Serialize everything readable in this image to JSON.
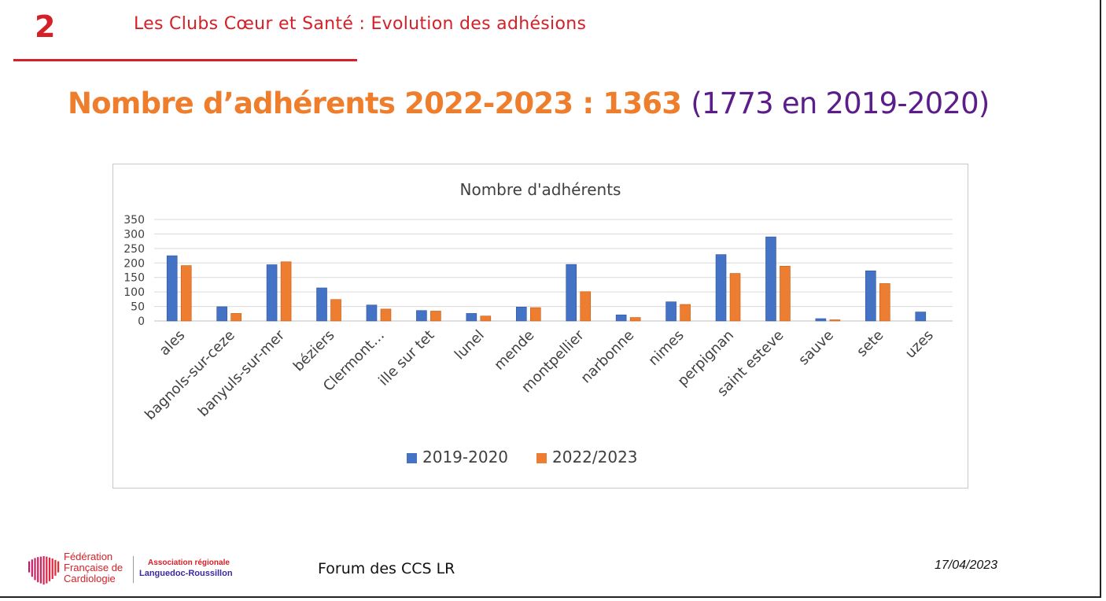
{
  "slide": {
    "number": "2",
    "header": "Les Clubs Cœur et Santé : Evolution des adhésions",
    "headline_main": "Nombre d’adhérents 2022-2023 :  1363",
    "headline_compare": "(1773 en 2019-2020)",
    "accent_color": "#d62027",
    "headline_color": "#ee7d2c",
    "compare_color": "#5b1d8a"
  },
  "chart_data": {
    "type": "bar",
    "title": "Nombre d'adhérents",
    "xlabel": "",
    "ylabel": "",
    "ylim": [
      0,
      350
    ],
    "yticks": [
      0,
      50,
      100,
      150,
      200,
      250,
      300,
      350
    ],
    "grid": true,
    "legend_position": "bottom",
    "categories": [
      "ales",
      "bagnols-sur-ceze",
      "banyuls-sur-mer",
      "béziers",
      "Clermont…",
      "ille sur tet",
      "lunel",
      "mende",
      "montpellier",
      "narbonne",
      "nimes",
      "perpignan",
      "saint esteve",
      "sauve",
      "sete",
      "uzes"
    ],
    "series": [
      {
        "name": "2019-2020",
        "color": "#4472c4",
        "values": [
          225,
          49,
          194,
          114,
          55,
          36,
          26,
          48,
          195,
          21,
          66,
          229,
          290,
          8,
          173,
          31
        ]
      },
      {
        "name": "2022/2023",
        "color": "#ed7d31",
        "values": [
          191,
          26,
          204,
          74,
          41,
          34,
          17,
          46,
          101,
          12,
          57,
          164,
          189,
          4,
          129,
          0
        ]
      }
    ]
  },
  "footer": {
    "logo_line1": "Fédération",
    "logo_line2": "Française de",
    "logo_line3": "Cardiologie",
    "assoc_line1": "Association régionale",
    "assoc_line2": "Languedoc-Roussillon",
    "center_text": "Forum des CCS LR",
    "date": "17/04/2023"
  }
}
